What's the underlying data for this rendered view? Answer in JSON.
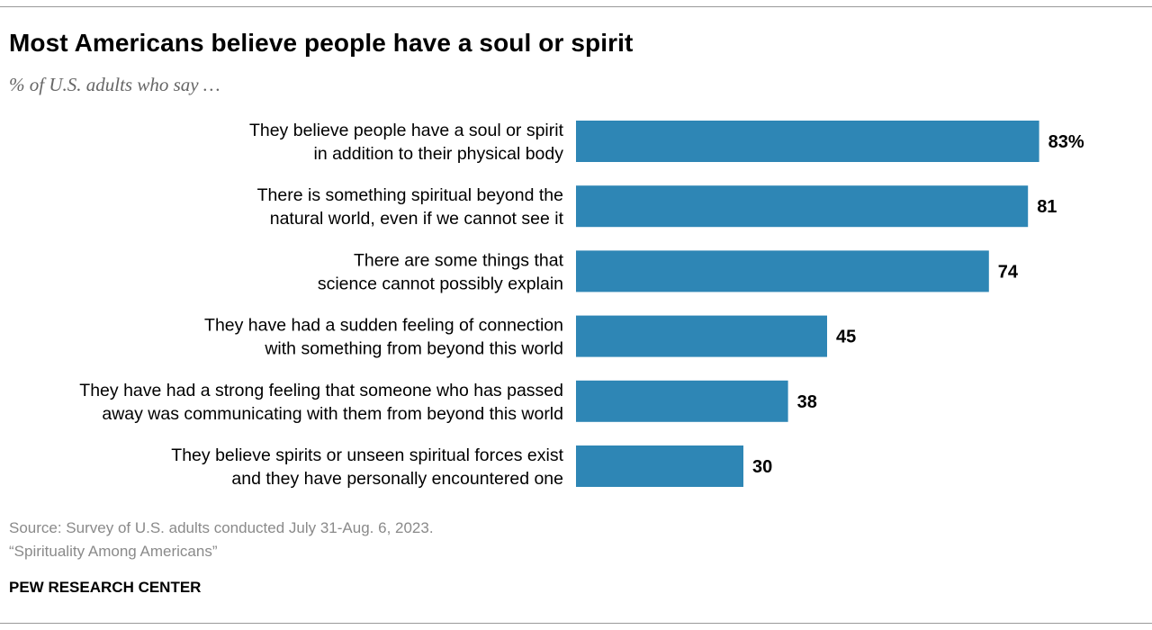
{
  "title": "Most Americans believe people have a soul or spirit",
  "subtitle": "% of U.S. adults who say …",
  "footer": {
    "source": "Source: Survey of U.S. adults conducted July 31-Aug. 6, 2023.",
    "report": "“Spirituality Among Americans”",
    "brand": "PEW RESEARCH CENTER"
  },
  "chart_data": {
    "type": "bar",
    "orientation": "horizontal",
    "categories": [
      [
        "They believe people have a soul or spirit",
        "in addition to their physical body"
      ],
      [
        "There is something spiritual beyond the",
        "natural world, even if we cannot see it"
      ],
      [
        "There are some things that",
        "science cannot possibly explain"
      ],
      [
        "They have had a sudden feeling of connection",
        "with something from beyond this world"
      ],
      [
        "They have had a strong feeling that someone who has passed",
        "away was communicating with them from beyond this world"
      ],
      [
        "They believe spirits or unseen spiritual forces exist",
        "and they have personally encountered one"
      ]
    ],
    "values": [
      83,
      81,
      74,
      45,
      38,
      30
    ],
    "value_labels": [
      "83%",
      "81",
      "74",
      "45",
      "38",
      "30"
    ],
    "bar_color": "#2e86b5",
    "xlim": [
      0,
      100
    ],
    "grid": false
  }
}
